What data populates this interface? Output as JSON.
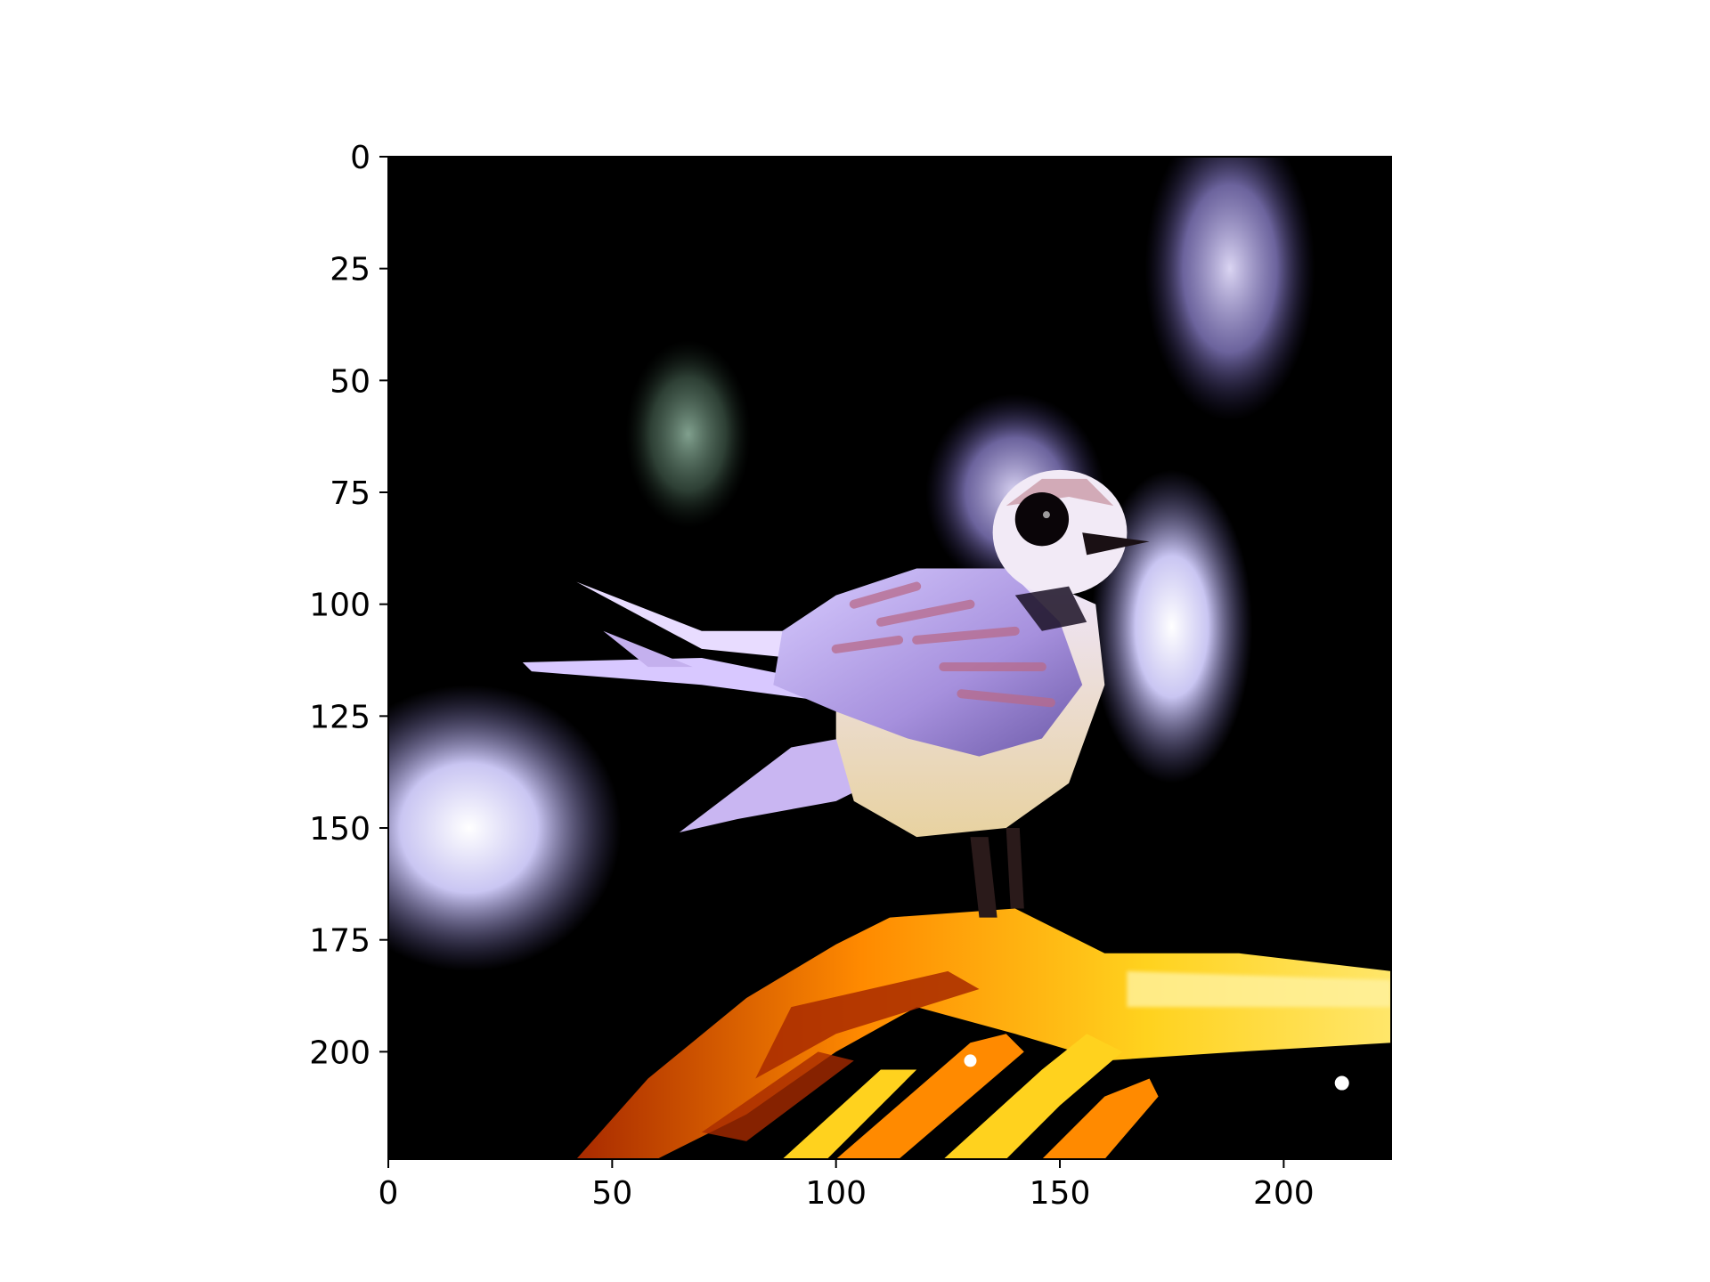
{
  "chart_data": {
    "type": "image",
    "title": "",
    "xlabel": "",
    "ylabel": "",
    "xlim": [
      0,
      224
    ],
    "ylim": [
      224,
      0
    ],
    "x_ticks": [
      0,
      50,
      100,
      150,
      200
    ],
    "y_ticks": [
      0,
      25,
      50,
      75,
      100,
      125,
      150,
      175,
      200
    ],
    "grid": false,
    "image": {
      "subject": "small bird with white head, dark eye patch and pale lilac wings perched on a bright orange-yellow branch",
      "background": "black with blurred pale blue and green bokeh spots"
    },
    "colors": {
      "background": "#000000",
      "bird_body": "#e6dcff",
      "bird_wing": "#b8a2e6",
      "wing_stripes": "#b86a8a",
      "branch_bright": "#ffd21e",
      "branch_mid": "#ff8a00",
      "branch_dark": "#a82a00",
      "bokeh_blue": "#c8c8ff",
      "bokeh_green": "#7fa08c",
      "axis": "#000000"
    }
  }
}
